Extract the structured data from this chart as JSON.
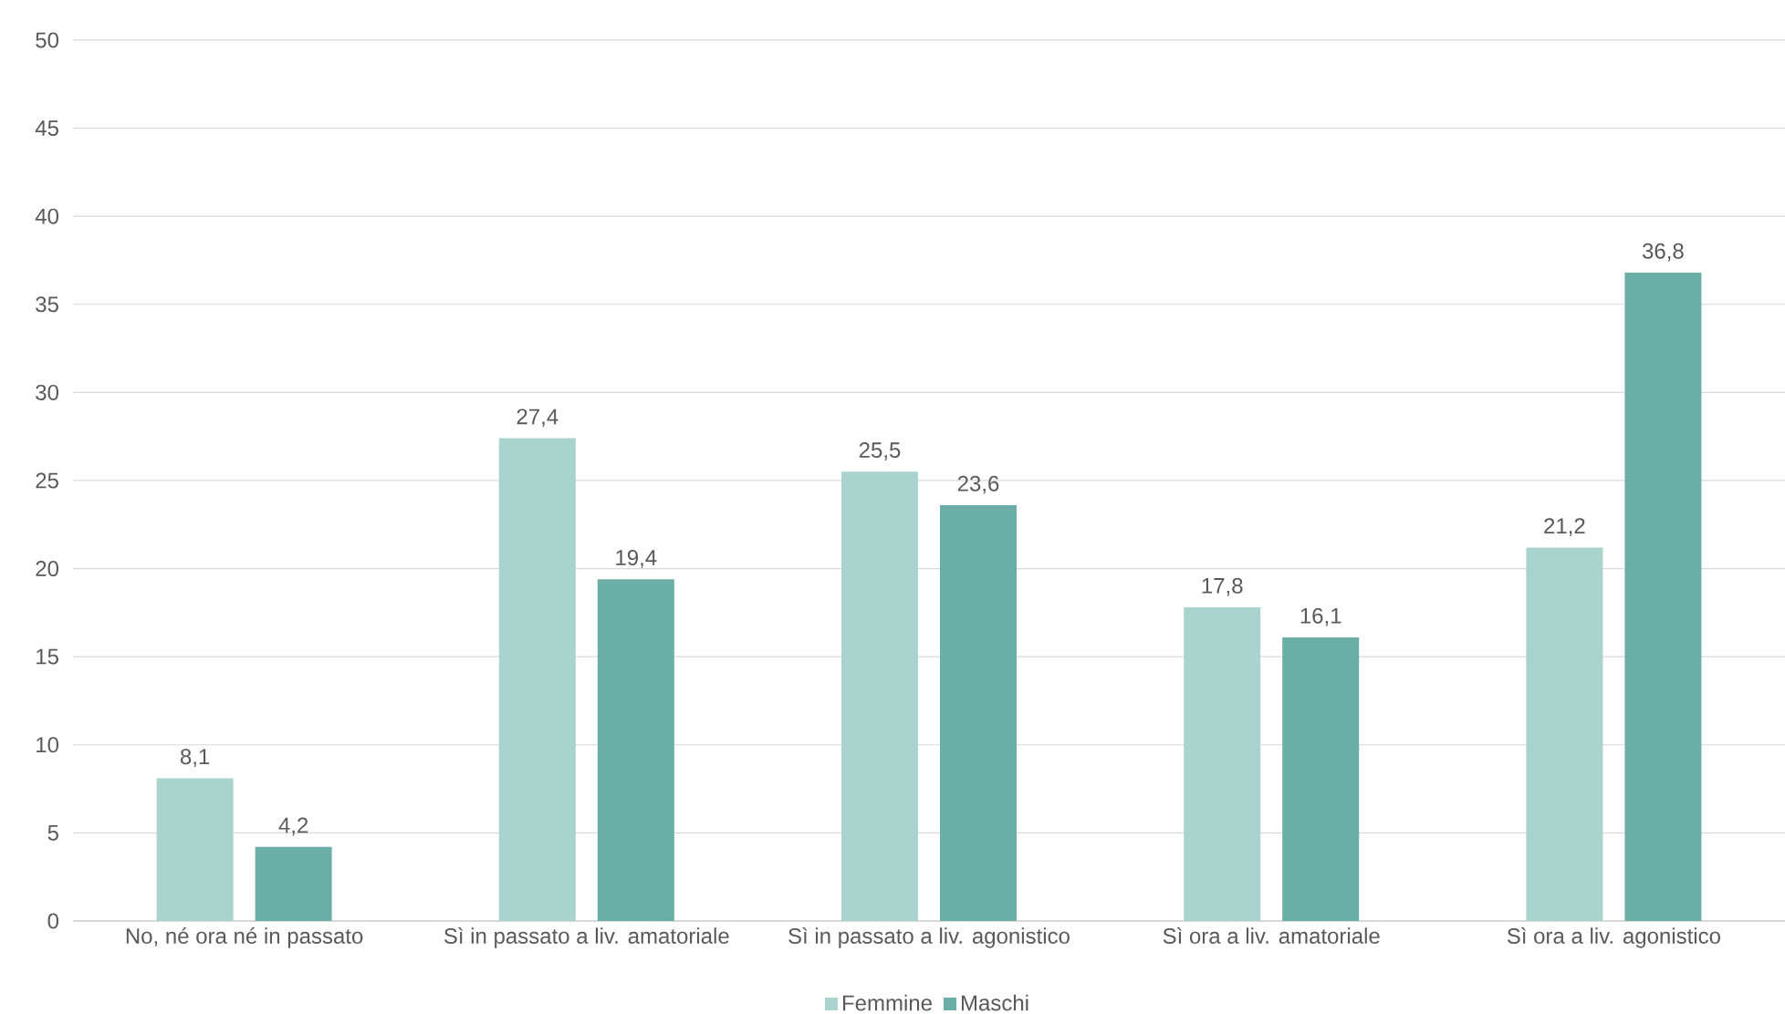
{
  "chart_data": {
    "type": "bar",
    "categories": [
      "No, né ora né in passato",
      "Sì in passato a liv. amatoriale",
      "Sì in passato a liv. agonistico",
      "Sì ora a liv. amatoriale",
      "Sì ora a liv. agonistico"
    ],
    "series": [
      {
        "name": "Femmine",
        "color": "#a9d3cd",
        "values": [
          8.1,
          27.4,
          25.5,
          17.8,
          21.2
        ],
        "value_labels": [
          "8,1",
          "27,4",
          "25,5",
          "17,8",
          "21,2"
        ]
      },
      {
        "name": "Maschi",
        "color": "#6aaea6",
        "values": [
          4.2,
          19.4,
          23.6,
          16.1,
          36.8
        ],
        "value_labels": [
          "4,2",
          "19,4",
          "23,6",
          "16,1",
          "36,8"
        ]
      }
    ],
    "ylim": [
      0,
      50
    ],
    "yticks": [
      0,
      5,
      10,
      15,
      20,
      25,
      30,
      35,
      40,
      45,
      50
    ],
    "grid": "y",
    "legend": "bottom"
  }
}
